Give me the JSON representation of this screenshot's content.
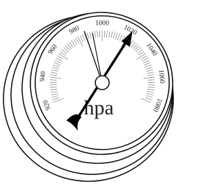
{
  "scale_labels": [
    "920",
    "940",
    "960",
    "980",
    "1000",
    "1020",
    "1040",
    "1060",
    "1080"
  ],
  "unit": "hpa"
}
